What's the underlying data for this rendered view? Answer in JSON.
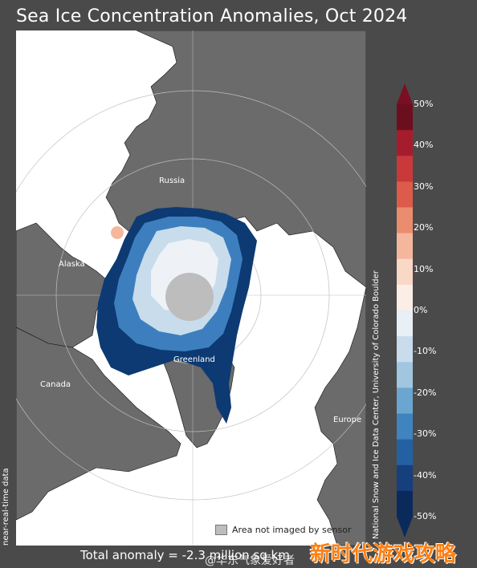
{
  "title": "Sea Ice Concentration Anomalies, Oct 2024",
  "labels": {
    "russia": "Russia",
    "alaska": "Alaska",
    "greenland": "Greenland",
    "canada": "Canada",
    "europe": "Europe"
  },
  "side_left": "near-real-time data",
  "side_right": "National Snow and Ice Data Center, University of Colorado Boulder",
  "colorbar": {
    "ticks": [
      "50%",
      "40%",
      "30%",
      "20%",
      "10%",
      "0%",
      "-10%",
      "-20%",
      "-30%",
      "-40%",
      "-50%"
    ],
    "colors": [
      "#6b0f1f",
      "#a51d2d",
      "#c9393a",
      "#dc5b4a",
      "#ec8c6e",
      "#f4b79c",
      "#f9d8c6",
      "#fbeee6",
      "#e8eff5",
      "#c8dcec",
      "#a0c6e0",
      "#6aa6cf",
      "#3f84bf",
      "#2461a3",
      "#163f7d",
      "#0b2a5c"
    ]
  },
  "legend_label": "Area not imaged by sensor",
  "total_anomaly": "Total anomaly = -2.3 million sq km",
  "watermark": "@华东气象爱好者",
  "stamp": "新时代游戏攻略"
}
